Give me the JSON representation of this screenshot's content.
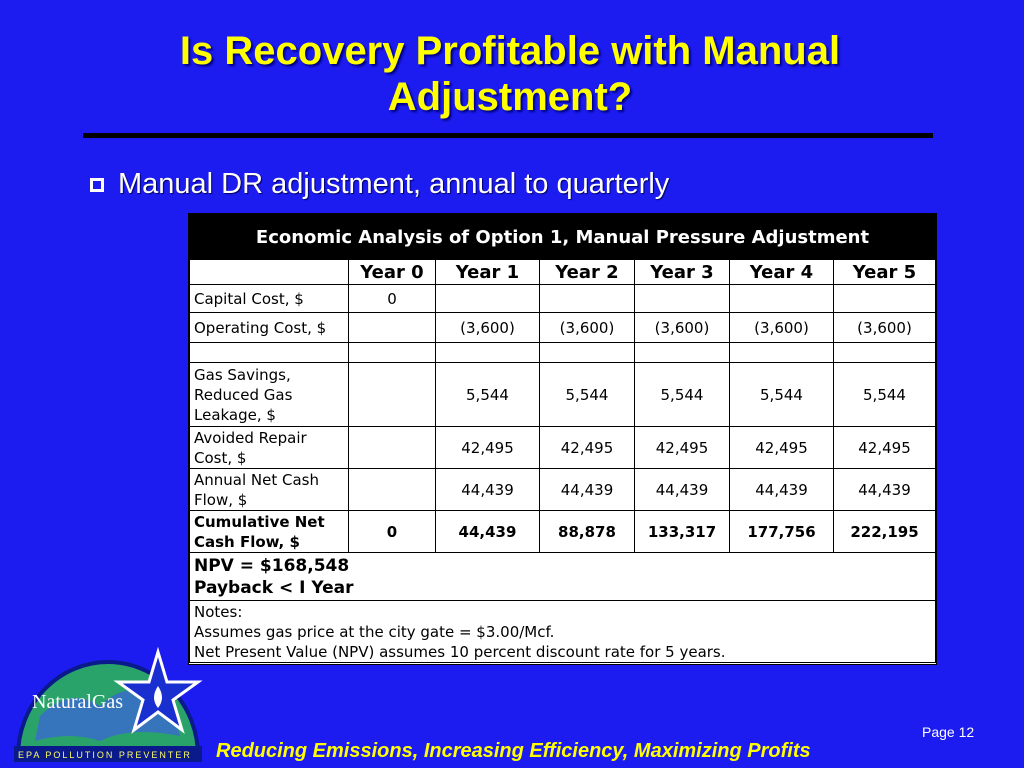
{
  "slide": {
    "title_line1": "Is Recovery Profitable with Manual",
    "title_line2": "Adjustment?",
    "bullet": "Manual DR adjustment, annual to quarterly",
    "footer": "Reducing Emissions, Increasing Efficiency, Maximizing Profits",
    "page": "Page 12"
  },
  "table": {
    "title": "Economic Analysis of Option 1, Manual Pressure Adjustment",
    "columns": [
      "",
      "Year 0",
      "Year 1",
      "Year 2",
      "Year 3",
      "Year 4",
      "Year 5"
    ],
    "rows": [
      {
        "label": "Capital Cost, $",
        "values": [
          "0",
          "",
          "",
          "",
          "",
          ""
        ]
      },
      {
        "label": "Operating Cost, $",
        "values": [
          "",
          "(3,600)",
          "(3,600)",
          "(3,600)",
          "(3,600)",
          "(3,600)"
        ]
      },
      {
        "label": "",
        "values": [
          "",
          "",
          "",
          "",
          "",
          ""
        ]
      },
      {
        "label": "Gas Savings, Reduced Gas Leakage, $",
        "values": [
          "",
          "5,544",
          "5,544",
          "5,544",
          "5,544",
          "5,544"
        ]
      },
      {
        "label": "Avoided Repair Cost, $",
        "values": [
          "",
          "42,495",
          "42,495",
          "42,495",
          "42,495",
          "42,495"
        ]
      },
      {
        "label": "Annual Net Cash Flow, $",
        "values": [
          "",
          "44,439",
          "44,439",
          "44,439",
          "44,439",
          "44,439"
        ]
      },
      {
        "label": "Cumulative Net Cash Flow, $",
        "values": [
          "0",
          "44,439",
          "88,878",
          "133,317",
          "177,756",
          "222,195"
        ]
      }
    ],
    "npv": "NPV = $168,548",
    "payback": "Payback < I Year",
    "notes_heading": "Notes:",
    "note1": "Assumes gas price at the city gate = $3.00/Mcf.",
    "note2": "Net Present Value (NPV) assumes 10 percent discount rate for 5 years."
  },
  "logo": {
    "brand": "NaturalGas",
    "ring_text": "EPA   POLLUTION PREVENTER",
    "colors": {
      "globe": "#2aa36a",
      "star": "#1a2fd0",
      "ring": "#0a1a8a"
    }
  },
  "colors": {
    "background": "#1c1cf0",
    "title": "#ffff00",
    "footer": "#ffff00",
    "table_header": "#000000"
  }
}
